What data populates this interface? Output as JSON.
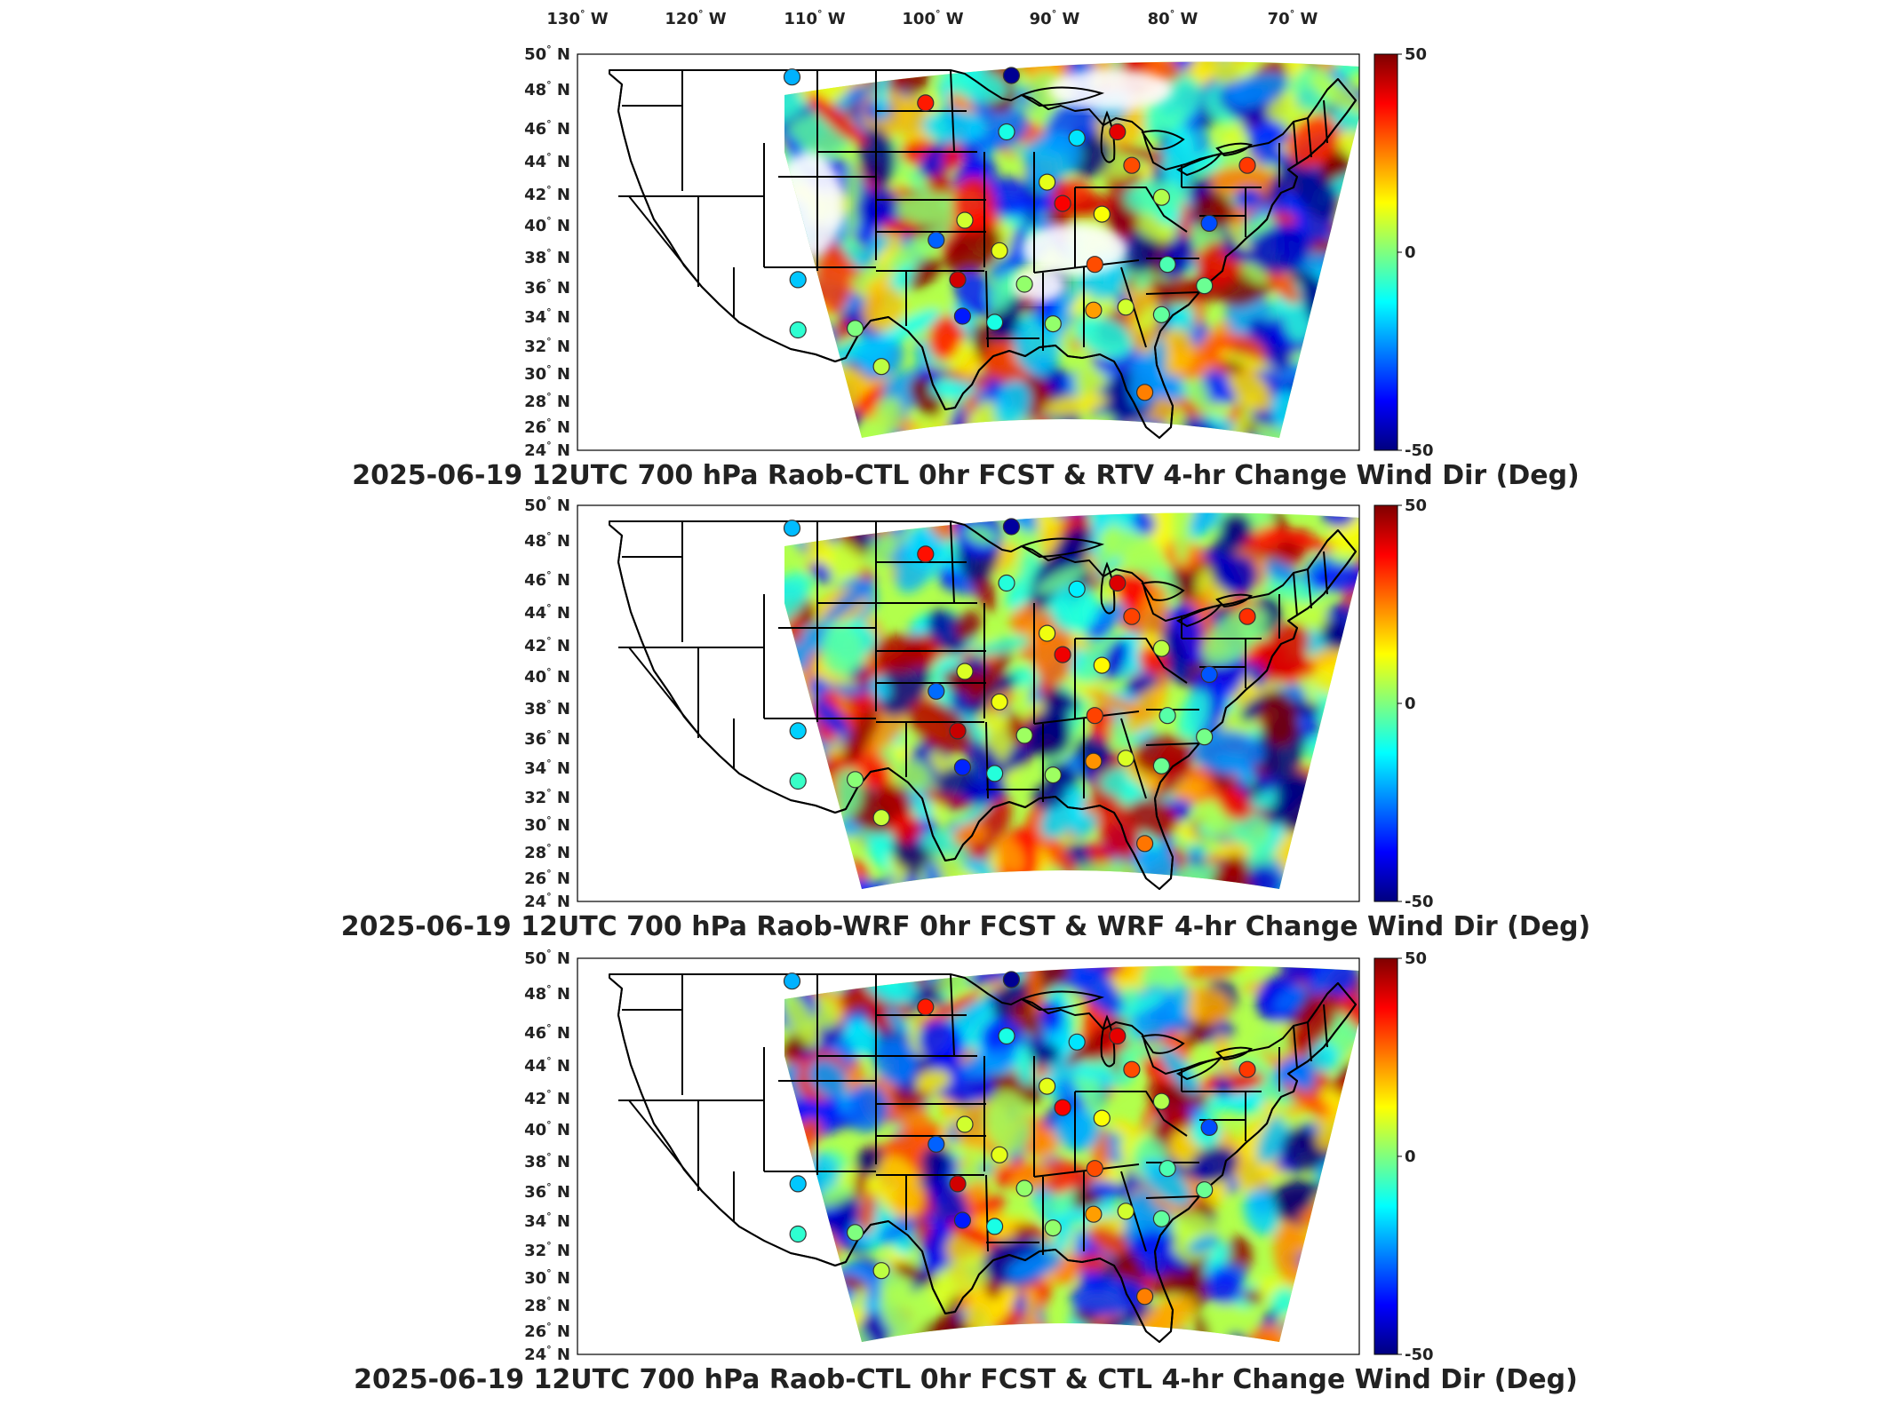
{
  "longitude_labels": [
    "130",
    "120",
    "110",
    "100",
    "90",
    "80",
    "70"
  ],
  "longitude_hemisphere": "W",
  "latitude_labels": [
    "50",
    "48",
    "46",
    "44",
    "42",
    "40",
    "38",
    "36",
    "34",
    "32",
    "30",
    "28",
    "26",
    "24"
  ],
  "latitude_hemisphere": "N",
  "degree_symbol": "°",
  "colorbar": {
    "max_label": "50",
    "mid_label": "0",
    "min_label": "-50",
    "colormap": "jet",
    "colors": [
      "#00007f",
      "#0000ff",
      "#007fff",
      "#00ffff",
      "#7fff7f",
      "#ffff00",
      "#ff7f00",
      "#ff0000",
      "#7f0000"
    ]
  },
  "panels": [
    {
      "title": "2025-06-19 12UTC 700 hPa Raob-CTL 0hr FCST & RTV 4-hr Change Wind Dir (Deg)"
    },
    {
      "title": "2025-06-19 12UTC 700 hPa Raob-WRF 0hr FCST & WRF 4-hr Change Wind Dir (Deg)"
    },
    {
      "title": "2025-06-19 12UTC 700 hPa Raob-CTL 0hr FCST & CTL 4-hr Change Wind Dir (Deg)"
    }
  ],
  "raob_markers": [
    {
      "lon": -112.0,
      "lat": 48.5,
      "value": -20
    },
    {
      "lon": -100.8,
      "lat": 46.8,
      "value": 35
    },
    {
      "lon": -93.6,
      "lat": 48.6,
      "value": -48
    },
    {
      "lon": -94.0,
      "lat": 44.9,
      "value": -10
    },
    {
      "lon": -88.1,
      "lat": 44.5,
      "value": -15
    },
    {
      "lon": -84.7,
      "lat": 44.9,
      "value": 40
    },
    {
      "lon": -83.5,
      "lat": 42.7,
      "value": 30
    },
    {
      "lon": -73.8,
      "lat": 42.7,
      "value": 32
    },
    {
      "lon": -90.6,
      "lat": 41.6,
      "value": 10
    },
    {
      "lon": -89.3,
      "lat": 40.2,
      "value": 38
    },
    {
      "lon": -86.0,
      "lat": 39.5,
      "value": 12
    },
    {
      "lon": -81.0,
      "lat": 40.6,
      "value": 5
    },
    {
      "lon": -77.0,
      "lat": 38.9,
      "value": -30
    },
    {
      "lon": -99.9,
      "lat": 37.8,
      "value": -28
    },
    {
      "lon": -97.5,
      "lat": 39.1,
      "value": 8
    },
    {
      "lon": -94.6,
      "lat": 37.1,
      "value": 10
    },
    {
      "lon": -111.5,
      "lat": 35.2,
      "value": -18
    },
    {
      "lon": -98.1,
      "lat": 35.2,
      "value": 42
    },
    {
      "lon": -92.5,
      "lat": 34.9,
      "value": 2
    },
    {
      "lon": -86.6,
      "lat": 36.2,
      "value": 30
    },
    {
      "lon": -80.5,
      "lat": 36.2,
      "value": -5
    },
    {
      "lon": -106.7,
      "lat": 32.0,
      "value": 0
    },
    {
      "lon": -97.7,
      "lat": 32.8,
      "value": -35
    },
    {
      "lon": -95.0,
      "lat": 32.4,
      "value": -10
    },
    {
      "lon": -90.1,
      "lat": 32.3,
      "value": 2
    },
    {
      "lon": -86.7,
      "lat": 33.2,
      "value": 22
    },
    {
      "lon": -84.0,
      "lat": 33.4,
      "value": 8
    },
    {
      "lon": -81.0,
      "lat": 32.9,
      "value": -3
    },
    {
      "lon": -77.4,
      "lat": 34.8,
      "value": -2
    },
    {
      "lon": -111.5,
      "lat": 31.9,
      "value": -8
    },
    {
      "lon": -104.5,
      "lat": 29.5,
      "value": 6
    },
    {
      "lon": -82.4,
      "lat": 27.8,
      "value": 25
    }
  ]
}
